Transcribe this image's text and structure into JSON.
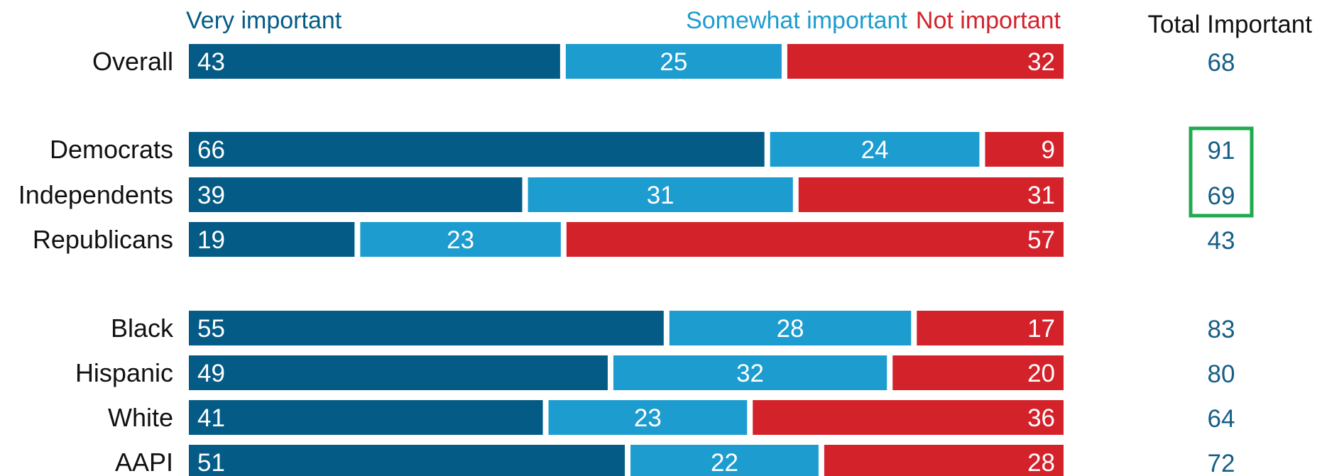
{
  "colors": {
    "very": "#035b86",
    "somewhat": "#1c9ccf",
    "not": "#d4222b",
    "total_text": "#155e86",
    "highlight": "#1faa4f",
    "row_label": "#111111"
  },
  "legend": {
    "very": "Very important",
    "somewhat": "Somewhat important",
    "not": "Not important"
  },
  "total_header": "Total Important",
  "highlighted_totals": [
    "Democrats",
    "Independents"
  ],
  "chart_data": {
    "type": "bar",
    "orientation": "horizontal",
    "stacked": true,
    "xlim": [
      0,
      100
    ],
    "grid": false,
    "legend_position": "top",
    "categories": [
      "Overall",
      "Democrats",
      "Independents",
      "Republicans",
      "Black",
      "Hispanic",
      "White",
      "AAPI"
    ],
    "groups": [
      [
        "Overall"
      ],
      [
        "Democrats",
        "Independents",
        "Republicans"
      ],
      [
        "Black",
        "Hispanic",
        "White",
        "AAPI"
      ]
    ],
    "series": [
      {
        "name": "Very important",
        "values": [
          43,
          66,
          39,
          19,
          55,
          49,
          41,
          51
        ]
      },
      {
        "name": "Somewhat important",
        "values": [
          25,
          24,
          31,
          23,
          28,
          32,
          23,
          22
        ]
      },
      {
        "name": "Not important",
        "values": [
          32,
          9,
          31,
          57,
          17,
          20,
          36,
          28
        ]
      }
    ],
    "totals": {
      "label": "Total Important",
      "values": [
        68,
        91,
        69,
        43,
        83,
        80,
        64,
        72
      ]
    }
  }
}
